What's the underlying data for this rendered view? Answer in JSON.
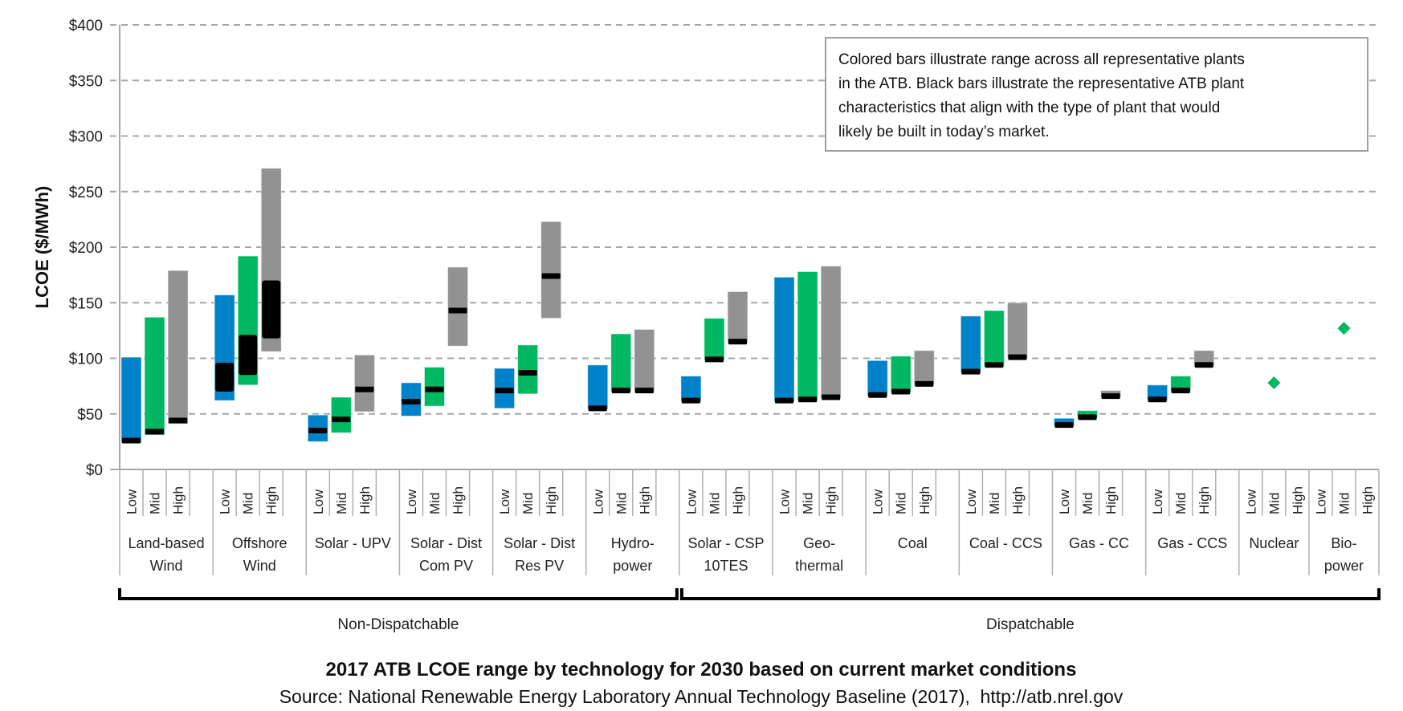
{
  "chart_data": {
    "type": "bar",
    "subtype": "floating-range",
    "title": "2017 ATB LCOE range by technology for 2030 based on current market conditions",
    "subtitle": "Source: National Renewable Energy Laboratory Annual Technology Baseline (2017),  http://atb.nrel.gov",
    "ylabel": "LCOE ($/MWh)",
    "ylim": [
      0,
      400
    ],
    "yticks": [
      "$0",
      "$50",
      "$100",
      "$150",
      "$200",
      "$250",
      "$300",
      "$350",
      "$400"
    ],
    "ytick_values": [
      0,
      50,
      100,
      150,
      200,
      250,
      300,
      350,
      400
    ],
    "grid": true,
    "annotation": "Colored bars illustrate range across all representative plants in the ATB. Black bars illustrate the representative ATB plant characteristics that align with the type of plant that would likely be built in today’s market.",
    "annotation_lines": [
      "Colored bars illustrate range across all representative plants",
      "in the ATB. Black bars illustrate the representative ATB plant",
      "characteristics that align with the type of plant that would",
      "likely be built in today’s market."
    ],
    "scenarios": [
      "Low",
      "Mid",
      "High"
    ],
    "colors": {
      "Low": "#0082ca",
      "Mid": "#00b862",
      "High": "#929292",
      "representative": "#000000"
    },
    "groups": [
      {
        "label": "Non-Dispatchable",
        "first": 0,
        "last": 5
      },
      {
        "label": "Dispatchable",
        "first": 6,
        "last": 13
      }
    ],
    "technologies": [
      {
        "label": [
          "Land-based",
          "Wind"
        ],
        "bars": [
          {
            "scenario": "Low",
            "range": [
              24,
              101
            ],
            "rep": [
              26,
              26
            ]
          },
          {
            "scenario": "Mid",
            "range": [
              31,
              137
            ],
            "rep": [
              34,
              34
            ]
          },
          {
            "scenario": "High",
            "range": [
              41,
              179
            ],
            "rep": [
              44,
              44
            ]
          }
        ]
      },
      {
        "label": [
          "Offshore",
          "Wind"
        ],
        "bars": [
          {
            "scenario": "Low",
            "range": [
              62,
              157
            ],
            "rep": [
              70,
              96
            ]
          },
          {
            "scenario": "Mid",
            "range": [
              76,
              192
            ],
            "rep": [
              85,
              121
            ]
          },
          {
            "scenario": "High",
            "range": [
              106,
              271
            ],
            "rep": [
              118,
              170
            ]
          }
        ]
      },
      {
        "label": [
          "Solar - UPV"
        ],
        "bars": [
          {
            "scenario": "Low",
            "range": [
              25,
              49
            ],
            "rep": [
              35,
              35
            ]
          },
          {
            "scenario": "Mid",
            "range": [
              33,
              65
            ],
            "rep": [
              45,
              45
            ]
          },
          {
            "scenario": "High",
            "range": [
              52,
              103
            ],
            "rep": [
              72,
              72
            ]
          }
        ]
      },
      {
        "label": [
          "Solar - Dist",
          "Com PV"
        ],
        "bars": [
          {
            "scenario": "Low",
            "range": [
              48,
              78
            ],
            "rep": [
              61,
              61
            ]
          },
          {
            "scenario": "Mid",
            "range": [
              57,
              92
            ],
            "rep": [
              72,
              72
            ]
          },
          {
            "scenario": "High",
            "range": [
              111,
              182
            ],
            "rep": [
              143,
              143
            ]
          }
        ]
      },
      {
        "label": [
          "Solar - Dist",
          "Res PV"
        ],
        "bars": [
          {
            "scenario": "Low",
            "range": [
              55,
              91
            ],
            "rep": [
              71,
              71
            ]
          },
          {
            "scenario": "Mid",
            "range": [
              68,
              112
            ],
            "rep": [
              87,
              87
            ]
          },
          {
            "scenario": "High",
            "range": [
              136,
              223
            ],
            "rep": [
              174,
              174
            ]
          }
        ]
      },
      {
        "label": [
          "Hydro-",
          "power"
        ],
        "bars": [
          {
            "scenario": "Low",
            "range": [
              54,
              94
            ],
            "rep": [
              55,
              55
            ]
          },
          {
            "scenario": "Mid",
            "range": [
              70,
              122
            ],
            "rep": [
              71,
              71
            ]
          },
          {
            "scenario": "High",
            "range": [
              70,
              126
            ],
            "rep": [
              71,
              71
            ]
          }
        ]
      },
      {
        "label": [
          "Solar - CSP",
          "10TES"
        ],
        "bars": [
          {
            "scenario": "Low",
            "range": [
              61,
              84
            ],
            "rep": [
              62,
              62
            ]
          },
          {
            "scenario": "Mid",
            "range": [
              98,
              136
            ],
            "rep": [
              99,
              99
            ]
          },
          {
            "scenario": "High",
            "range": [
              114,
              160
            ],
            "rep": [
              115,
              115
            ]
          }
        ]
      },
      {
        "label": [
          "Geo-",
          "thermal"
        ],
        "bars": [
          {
            "scenario": "Low",
            "range": [
              61,
              173
            ],
            "rep": [
              62,
              62
            ]
          },
          {
            "scenario": "Mid",
            "range": [
              62,
              178
            ],
            "rep": [
              63,
              63
            ]
          },
          {
            "scenario": "High",
            "range": [
              64,
              183
            ],
            "rep": [
              65,
              65
            ]
          }
        ]
      },
      {
        "label": [
          "Coal"
        ],
        "bars": [
          {
            "scenario": "Low",
            "range": [
              66,
              98
            ],
            "rep": [
              67,
              67
            ]
          },
          {
            "scenario": "Mid",
            "range": [
              69,
              102
            ],
            "rep": [
              70,
              70
            ]
          },
          {
            "scenario": "High",
            "range": [
              76,
              107
            ],
            "rep": [
              77,
              77
            ]
          }
        ]
      },
      {
        "label": [
          "Coal - CCS"
        ],
        "bars": [
          {
            "scenario": "Low",
            "range": [
              87,
              138
            ],
            "rep": [
              88,
              88
            ]
          },
          {
            "scenario": "Mid",
            "range": [
              93,
              143
            ],
            "rep": [
              94,
              94
            ]
          },
          {
            "scenario": "High",
            "range": [
              100,
              150
            ],
            "rep": [
              101,
              101
            ]
          }
        ]
      },
      {
        "label": [
          "Gas - CC"
        ],
        "bars": [
          {
            "scenario": "Low",
            "range": [
              39,
              46
            ],
            "rep": [
              40,
              40
            ]
          },
          {
            "scenario": "Mid",
            "range": [
              46,
              53
            ],
            "rep": [
              47,
              47
            ]
          },
          {
            "scenario": "High",
            "range": [
              65,
              71
            ],
            "rep": [
              66,
              66
            ]
          }
        ]
      },
      {
        "label": [
          "Gas - CCS"
        ],
        "bars": [
          {
            "scenario": "Low",
            "range": [
              62,
              76
            ],
            "rep": [
              63,
              63
            ]
          },
          {
            "scenario": "Mid",
            "range": [
              70,
              84
            ],
            "rep": [
              71,
              71
            ]
          },
          {
            "scenario": "High",
            "range": [
              93,
              107
            ],
            "rep": [
              94,
              94
            ]
          }
        ]
      },
      {
        "label": [
          "Nuclear"
        ],
        "bars": [
          {
            "scenario": "Mid",
            "point": 78
          }
        ]
      },
      {
        "label": [
          "Bio-",
          "power"
        ],
        "bars": [
          {
            "scenario": "Mid",
            "point": 127
          }
        ]
      }
    ]
  }
}
